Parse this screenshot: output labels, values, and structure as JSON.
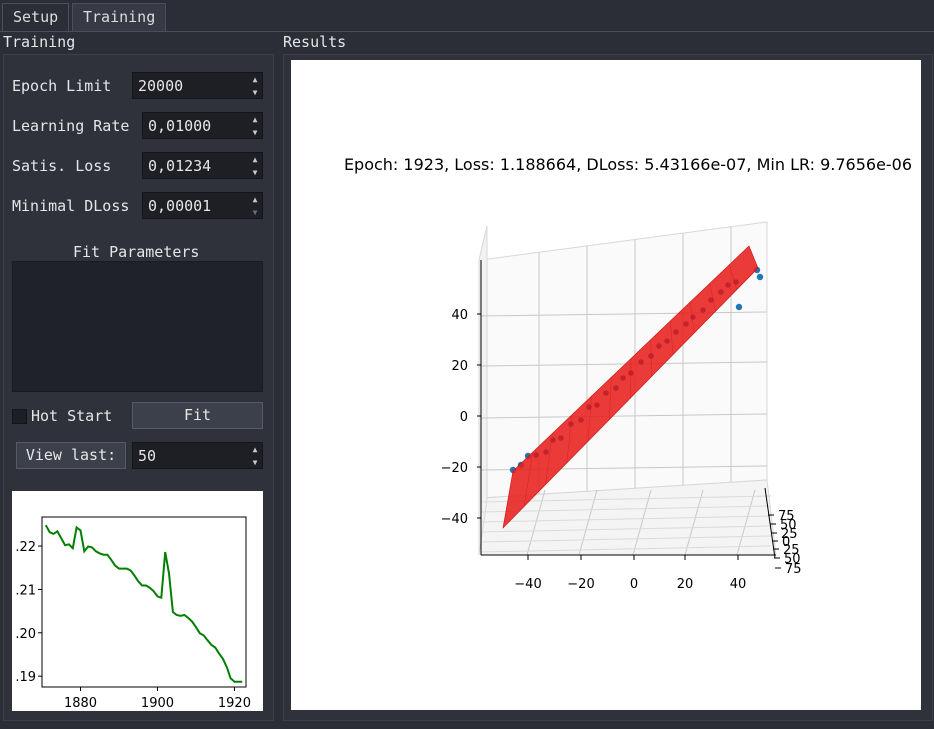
{
  "tabs": [
    {
      "label": "Setup"
    },
    {
      "label": "Training"
    }
  ],
  "left": {
    "title": "Training",
    "epoch_limit": {
      "label": "Epoch Limit",
      "value": "20000"
    },
    "learning_rate": {
      "label": "Learning Rate",
      "value": "0,01000"
    },
    "satis_loss": {
      "label": "Satis. Loss",
      "value": "0,01234"
    },
    "minimal_dloss": {
      "label": "Minimal DLoss",
      "value": "0,00001"
    },
    "fit_parameters_label": "Fit Parameters",
    "hot_start_label": "Hot Start",
    "hot_start_checked": false,
    "fit_button": "Fit",
    "view_last_button": "View last:",
    "view_last_value": "50"
  },
  "results": {
    "title": "Results",
    "plot_title": "Epoch: 1923, Loss: 1.188664, DLoss: 5.43166e-07, Min LR: 9.7656e-06"
  },
  "colors": {
    "loss_line": "#008000",
    "plane": "#e8201e",
    "points": "#1f77b4"
  },
  "chart_data": [
    {
      "type": "line",
      "title": "",
      "x": [
        1871,
        1872,
        1873,
        1874,
        1875,
        1876,
        1877,
        1878,
        1879,
        1880,
        1881,
        1882,
        1883,
        1884,
        1885,
        1886,
        1887,
        1888,
        1889,
        1890,
        1891,
        1892,
        1893,
        1894,
        1895,
        1896,
        1897,
        1898,
        1899,
        1900,
        1901,
        1902,
        1903,
        1904,
        1905,
        1906,
        1907,
        1908,
        1909,
        1910,
        1911,
        1912,
        1913,
        1914,
        1915,
        1916,
        1917,
        1918,
        1919,
        1920,
        1921,
        1922
      ],
      "series": [
        {
          "values": [
            1.2248,
            1.2232,
            1.2228,
            1.2234,
            1.2218,
            1.2202,
            1.2204,
            1.2195,
            1.2243,
            1.2236,
            1.2188,
            1.2199,
            1.2197,
            1.2188,
            1.2183,
            1.218,
            1.218,
            1.2168,
            1.2155,
            1.2148,
            1.2148,
            1.2148,
            1.2144,
            1.2132,
            1.2119,
            1.2109,
            1.2109,
            1.2104,
            1.2096,
            1.2084,
            1.2081,
            1.2186,
            1.2137,
            1.2048,
            1.2041,
            1.2039,
            1.2041,
            1.2034,
            1.2026,
            1.2013,
            1.1999,
            1.1994,
            1.1983,
            1.1972,
            1.1966,
            1.1952,
            1.194,
            1.1921,
            1.1895,
            1.1887,
            1.1887,
            1.1887
          ]
        }
      ],
      "xticks": [
        1880,
        1900,
        1920
      ],
      "yticks": [
        ".19",
        ".20",
        ".21",
        ".22"
      ],
      "xlim": [
        1870,
        1923
      ],
      "ylim": [
        1.1875,
        1.2267
      ]
    },
    {
      "type": "scatter",
      "title": "Epoch: 1923, Loss: 1.188664, DLoss: 5.43166e-07, Min LR: 9.7656e-06",
      "xticks": [
        "−40",
        "−20",
        "0",
        "20",
        "40"
      ],
      "zticks": [
        "−40",
        "−20",
        "0",
        "20",
        "40"
      ],
      "yticks": [
        "75",
        "50",
        "25",
        "0",
        "25",
        "50",
        "75"
      ]
    }
  ]
}
